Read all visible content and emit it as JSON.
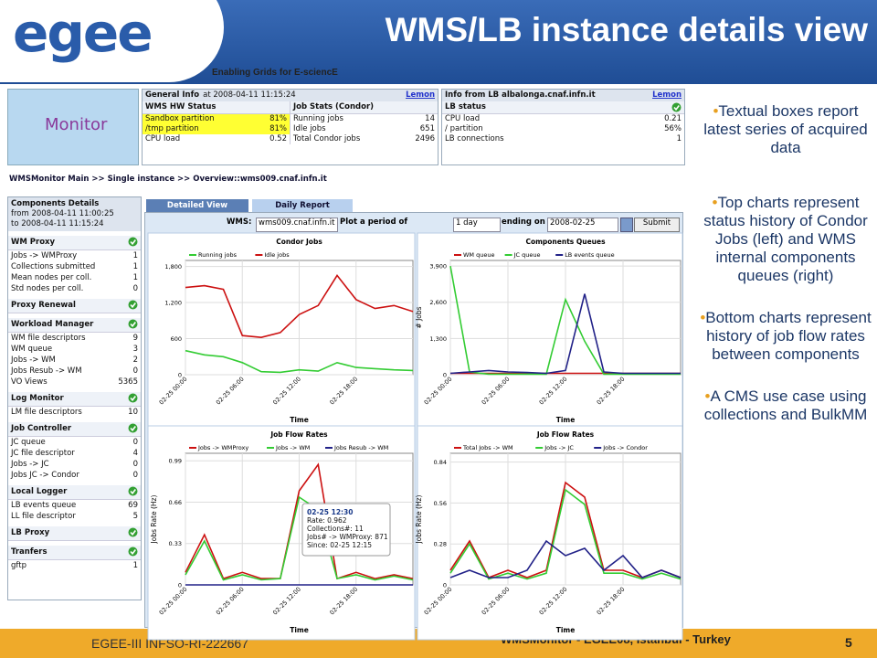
{
  "header": {
    "logo": "egee",
    "title": "WMS/LB instance details view",
    "subtitle": "Enabling Grids for E-sciencE"
  },
  "footer": {
    "left": "EGEE-III INFSO-RI-222667",
    "center": "WMSMonitor - EGEE08, Istanbul - Turkey",
    "page": "5"
  },
  "bullets": [
    "Textual boxes report latest series of acquired data",
    "Top charts represent status history of  Condor Jobs (left) and WMS internal components queues (right)",
    "Bottom charts represent history of job flow rates between components",
    "A CMS use case using collections and BulkMM"
  ],
  "screenshot": {
    "logo": "Monitor",
    "general_info": {
      "title": "General Info",
      "at": "at 2008-04-11 11:15:24",
      "link": "Lemon",
      "hw": {
        "title": "WMS HW Status",
        "rows": [
          [
            "Sandbox partition",
            "81%"
          ],
          [
            "/tmp partition",
            "81%"
          ],
          [
            "CPU load",
            "0.52"
          ]
        ]
      },
      "jobs": {
        "title": "Job Stats (Condor)",
        "rows": [
          [
            "Running jobs",
            "14"
          ],
          [
            "Idle jobs",
            "651"
          ],
          [
            "Total Condor jobs",
            "2496"
          ]
        ]
      }
    },
    "lb_info": {
      "title": "Info from LB albalonga.cnaf.infn.it",
      "link": "Lemon",
      "status": "LB status",
      "rows": [
        [
          "CPU load",
          "0.21"
        ],
        [
          "/ partition",
          "56%"
        ],
        [
          "LB connections",
          "1"
        ]
      ]
    },
    "breadcrumb": "WMSMonitor Main >> Single instance >> Overview::wms009.cnaf.infn.it",
    "components": {
      "title": "Components Details",
      "from": "from 2008-04-11 11:00:25",
      "to": "to 2008-04-11 11:15:24",
      "sections": [
        {
          "title": "WM Proxy",
          "rows": [
            [
              "Jobs -> WMProxy",
              "1"
            ],
            [
              "Collections submitted",
              "1"
            ],
            [
              "Mean nodes per coll.",
              "1"
            ],
            [
              "Std nodes per coll.",
              "0"
            ]
          ]
        },
        {
          "title": "Proxy Renewal",
          "rows": []
        },
        {
          "title": "Workload Manager",
          "rows": [
            [
              "WM file descriptors",
              "9"
            ],
            [
              "WM queue",
              "3"
            ],
            [
              "Jobs -> WM",
              "2"
            ],
            [
              "Jobs Resub -> WM",
              "0"
            ],
            [
              "VO Views",
              "5365"
            ]
          ]
        },
        {
          "title": "Log Monitor",
          "rows": [
            [
              "LM file descriptors",
              "10"
            ]
          ]
        },
        {
          "title": "Job Controller",
          "rows": [
            [
              "JC queue",
              "0"
            ],
            [
              "JC file descriptor",
              "4"
            ],
            [
              "Jobs -> JC",
              "0"
            ],
            [
              "Jobs JC -> Condor",
              "0"
            ]
          ]
        },
        {
          "title": "Local Logger",
          "rows": [
            [
              "LB events queue",
              "69"
            ],
            [
              "LL file descriptor",
              "5"
            ]
          ]
        },
        {
          "title": "LB Proxy",
          "rows": []
        },
        {
          "title": "Tranfers",
          "rows": [
            [
              "gftp",
              "1"
            ]
          ]
        }
      ]
    },
    "tabs": [
      "Detailed View",
      "Daily Report"
    ],
    "form": {
      "wms_label": "WMS:",
      "wms": "wms009.cnaf.infn.it",
      "period_label": "Plot a period of",
      "period": "1 day",
      "ending_label": "ending on",
      "date": "2008-02-25",
      "submit": "Submit"
    }
  },
  "chart_data": [
    {
      "type": "line",
      "title": "Condor Jobs",
      "xlabel": "Time",
      "grid": true,
      "x": [
        0,
        2,
        4,
        6,
        8,
        10,
        12,
        14,
        16,
        18,
        20,
        22,
        24
      ],
      "xlim": [
        0,
        24
      ],
      "xticks": [
        {
          "value": 0,
          "label": "02-25 00:00"
        },
        {
          "value": 6,
          "label": "02-25 06:00"
        },
        {
          "value": 12,
          "label": "02-25 12:00"
        },
        {
          "value": 18,
          "label": "02-25 18:00"
        }
      ],
      "ylim": [
        0,
        1900
      ],
      "yticks": [
        0,
        600,
        {
          "value": 1200,
          "label": "1,200"
        },
        {
          "value": 1800,
          "label": "1,800"
        }
      ],
      "series": [
        {
          "name": "Running jobs",
          "color": "#33cc33",
          "values": [
            400,
            330,
            300,
            200,
            50,
            40,
            80,
            60,
            200,
            120,
            100,
            80,
            70
          ]
        },
        {
          "name": "Idle jobs",
          "color": "#cc1111",
          "values": [
            1450,
            1480,
            1420,
            650,
            620,
            700,
            1000,
            1150,
            1650,
            1250,
            1100,
            1150,
            1050
          ]
        }
      ]
    },
    {
      "type": "line",
      "title": "Components Queues",
      "xlabel": "Time",
      "ylabel": "# Jobs",
      "grid": true,
      "x": [
        0,
        2,
        4,
        6,
        8,
        10,
        12,
        14,
        16,
        18,
        20,
        22,
        24
      ],
      "xlim": [
        0,
        24
      ],
      "xticks": [
        {
          "value": 0,
          "label": "02-25 00:00"
        },
        {
          "value": 6,
          "label": "02-25 06:00"
        },
        {
          "value": 12,
          "label": "02-25 12:00"
        },
        {
          "value": 18,
          "label": "02-25 18:00"
        }
      ],
      "ylim": [
        0,
        4100
      ],
      "yticks": [
        0,
        {
          "value": 1300,
          "label": "1,300"
        },
        {
          "value": 2600,
          "label": "2,600"
        },
        {
          "value": 3900,
          "label": "3,900"
        }
      ],
      "series": [
        {
          "name": "WM queue",
          "color": "#cc1111",
          "values": [
            50,
            50,
            50,
            50,
            50,
            50,
            50,
            50,
            50,
            50,
            50,
            50,
            50
          ]
        },
        {
          "name": "JC queue",
          "color": "#33cc33",
          "values": [
            3900,
            100,
            20,
            20,
            20,
            20,
            2700,
            1200,
            20,
            20,
            20,
            20,
            20
          ]
        },
        {
          "name": "LB events queue",
          "color": "#222288",
          "values": [
            50,
            100,
            150,
            100,
            80,
            50,
            150,
            2900,
            100,
            50,
            50,
            50,
            50
          ]
        }
      ]
    },
    {
      "type": "line",
      "title": "Job Flow Rates",
      "xlabel": "Time",
      "ylabel": "Jobs Rate (Hz)",
      "grid": true,
      "x": [
        0,
        2,
        4,
        6,
        8,
        10,
        12,
        14,
        16,
        18,
        20,
        22,
        24
      ],
      "xlim": [
        0,
        24
      ],
      "xticks": [
        {
          "value": 0,
          "label": "02-25 00:00"
        },
        {
          "value": 6,
          "label": "02-25 06:00"
        },
        {
          "value": 12,
          "label": "02-25 12:00"
        },
        {
          "value": 18,
          "label": "02-25 18:00"
        }
      ],
      "ylim": [
        0,
        1.05
      ],
      "yticks": [
        0,
        0.33,
        0.66,
        0.99
      ],
      "series": [
        {
          "name": "Jobs -> WMProxy",
          "color": "#cc1111",
          "values": [
            0.1,
            0.4,
            0.05,
            0.1,
            0.05,
            0.05,
            0.75,
            0.96,
            0.05,
            0.1,
            0.05,
            0.08,
            0.05
          ]
        },
        {
          "name": "Jobs -> WM",
          "color": "#33cc33",
          "values": [
            0.08,
            0.35,
            0.04,
            0.08,
            0.04,
            0.05,
            0.7,
            0.6,
            0.05,
            0.08,
            0.04,
            0.07,
            0.04
          ]
        },
        {
          "name": "Jobs Resub -> WM",
          "color": "#222288",
          "values": [
            0,
            0,
            0,
            0,
            0,
            0,
            0,
            0,
            0,
            0,
            0,
            0,
            0
          ]
        }
      ],
      "annotation": [
        "02-25 12:30",
        "Rate: 0.962",
        "Collections#: 11",
        "Jobs# -> WMProxy: 871",
        "Since: 02-25 12:15"
      ]
    },
    {
      "type": "line",
      "title": "Job Flow Rates",
      "xlabel": "Time",
      "ylabel": "Jobs Rate (Hz)",
      "grid": true,
      "x": [
        0,
        2,
        4,
        6,
        8,
        10,
        12,
        14,
        16,
        18,
        20,
        22,
        24
      ],
      "xlim": [
        0,
        24
      ],
      "xticks": [
        {
          "value": 0,
          "label": "02-25 00:00"
        },
        {
          "value": 6,
          "label": "02-25 06:00"
        },
        {
          "value": 12,
          "label": "02-25 12:00"
        },
        {
          "value": 18,
          "label": "02-25 18:00"
        }
      ],
      "ylim": [
        0,
        0.9
      ],
      "yticks": [
        0,
        0.28,
        0.56,
        0.84
      ],
      "series": [
        {
          "name": "Total Jobs -> WM",
          "color": "#cc1111",
          "values": [
            0.1,
            0.3,
            0.05,
            0.1,
            0.05,
            0.1,
            0.7,
            0.6,
            0.1,
            0.1,
            0.05,
            0.1,
            0.05
          ]
        },
        {
          "name": "Jobs -> JC",
          "color": "#33cc33",
          "values": [
            0.08,
            0.28,
            0.04,
            0.08,
            0.04,
            0.08,
            0.65,
            0.55,
            0.08,
            0.08,
            0.04,
            0.08,
            0.04
          ]
        },
        {
          "name": "Jobs -> Condor",
          "color": "#222288",
          "values": [
            0.05,
            0.1,
            0.05,
            0.05,
            0.1,
            0.3,
            0.2,
            0.25,
            0.1,
            0.2,
            0.05,
            0.1,
            0.05
          ]
        }
      ]
    }
  ]
}
